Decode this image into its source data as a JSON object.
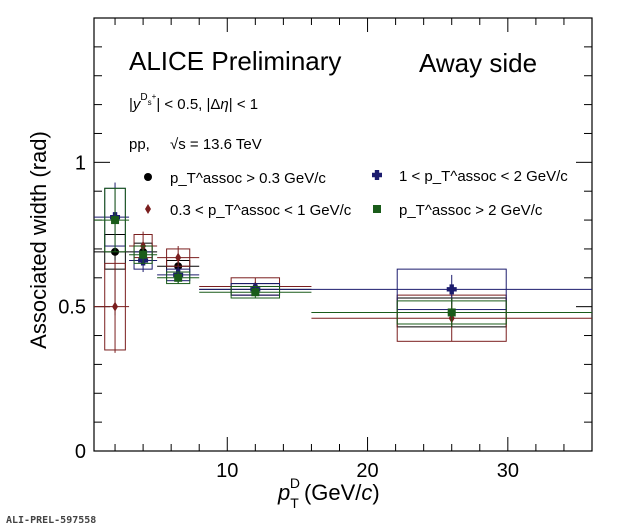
{
  "header": {
    "preliminary": "ALICE Preliminary",
    "side": "Away side",
    "kinematic_cut": "|y^{D_s^+}| < 0.5, |Δη| < 1",
    "system": "pp,",
    "energy": "√s = 13.6 TeV"
  },
  "footer_id": "ALI-PREL-597558",
  "chart_data": {
    "type": "scatter",
    "title": "",
    "xlabel": "p_T^D (GeV/c)",
    "ylabel": "Associated width (rad)",
    "xlim": [
      0.5,
      36
    ],
    "ylim": [
      0,
      1.5
    ],
    "x_ticks": [
      10,
      20,
      30
    ],
    "y_ticks": [
      0,
      0.5,
      1
    ],
    "y_tick_labels": [
      "0",
      "0.5",
      "1"
    ],
    "grid": false,
    "legend_placement": "middle",
    "x_bins": [
      [
        0.5,
        3
      ],
      [
        3,
        5
      ],
      [
        5,
        8
      ],
      [
        8,
        16
      ],
      [
        16,
        36
      ]
    ],
    "series": [
      {
        "name": "p_T^assoc > 0.3 GeV/c",
        "color": "#000000",
        "marker": "circle",
        "x": [
          2,
          4,
          6.5,
          12,
          26
        ],
        "y": [
          0.69,
          0.69,
          0.64,
          0.56,
          0.48
        ],
        "xerr": [
          1.5,
          1,
          1.5,
          4,
          10
        ],
        "stat_err": [
          0.22,
          0.03,
          0.03,
          0.02,
          0.05
        ],
        "syst_err": [
          0.06,
          0.03,
          0.02,
          0.02,
          0.05
        ]
      },
      {
        "name": "0.3 < p_T^assoc < 1 GeV/c",
        "color": "#7a1e1e",
        "marker": "diamond",
        "x": [
          2,
          4,
          6.5,
          12,
          26
        ],
        "y": [
          0.5,
          0.71,
          0.67,
          0.57,
          0.46
        ],
        "xerr": [
          1.5,
          1,
          1.5,
          4,
          10
        ],
        "stat_err": [
          0.16,
          0.05,
          0.04,
          0.03,
          0.08
        ],
        "syst_err": [
          0.15,
          0.04,
          0.03,
          0.03,
          0.08
        ]
      },
      {
        "name": "1 < p_T^assoc < 2 GeV/c",
        "color": "#1c1c6e",
        "marker": "cross",
        "x": [
          2,
          4,
          6.5,
          12,
          26
        ],
        "y": [
          0.81,
          0.66,
          0.61,
          0.56,
          0.56
        ],
        "xerr": [
          1.5,
          1,
          1.5,
          4,
          10
        ],
        "stat_err": [
          0.12,
          0.04,
          0.03,
          0.02,
          0.05
        ],
        "syst_err": [
          0.1,
          0.03,
          0.02,
          0.02,
          0.07
        ]
      },
      {
        "name": "p_T^assoc > 2 GeV/c",
        "color": "#1a5c1a",
        "marker": "square",
        "x": [
          2,
          4,
          6.5,
          12,
          26
        ],
        "y": [
          0.8,
          0.68,
          0.6,
          0.55,
          0.48
        ],
        "xerr": [
          1.5,
          1,
          1.5,
          4,
          10
        ],
        "stat_err": [
          0.11,
          0.03,
          0.02,
          0.02,
          0.05
        ],
        "syst_err": [
          0.11,
          0.03,
          0.02,
          0.02,
          0.04
        ]
      }
    ]
  }
}
